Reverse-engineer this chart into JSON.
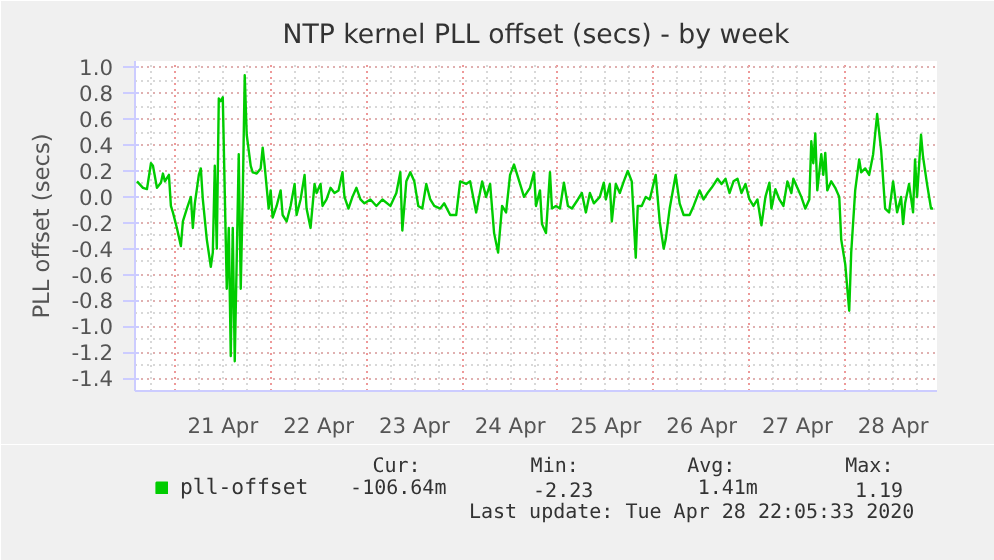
{
  "chart_data": {
    "type": "line",
    "title": "NTP kernel PLL offset (secs) - by week",
    "ylabel": "PLL offset (secs)",
    "xlim": [
      "2020-04-20T14:00",
      "2020-04-28T23:00"
    ],
    "ylim": [
      -1.5,
      1.05
    ],
    "yticks": [
      {
        "value": 1.0,
        "label": "1.0"
      },
      {
        "value": 0.8,
        "label": "0.8"
      },
      {
        "value": 0.6,
        "label": "0.6"
      },
      {
        "value": 0.4,
        "label": "0.4"
      },
      {
        "value": 0.2,
        "label": "0.2"
      },
      {
        "value": 0.0,
        "label": "0.0"
      },
      {
        "value": -0.2,
        "label": "-0.2"
      },
      {
        "value": -0.4,
        "label": "-0.4"
      },
      {
        "value": -0.6,
        "label": "-0.6"
      },
      {
        "value": -0.8,
        "label": "-0.8"
      },
      {
        "value": -1.0,
        "label": "-1.0"
      },
      {
        "value": -1.2,
        "label": "-1.2"
      },
      {
        "value": -1.4,
        "label": "-1.4"
      }
    ],
    "xticks": [
      {
        "value": "2020-04-21T00:00",
        "label": null
      },
      {
        "value": "2020-04-21T12:00",
        "label": "21 Apr"
      },
      {
        "value": "2020-04-22T00:00",
        "label": null
      },
      {
        "value": "2020-04-22T12:00",
        "label": "22 Apr"
      },
      {
        "value": "2020-04-23T00:00",
        "label": null
      },
      {
        "value": "2020-04-23T12:00",
        "label": "23 Apr"
      },
      {
        "value": "2020-04-24T00:00",
        "label": null
      },
      {
        "value": "2020-04-24T12:00",
        "label": "24 Apr"
      },
      {
        "value": "2020-04-25T00:00",
        "label": null
      },
      {
        "value": "2020-04-25T12:00",
        "label": "25 Apr"
      },
      {
        "value": "2020-04-26T00:00",
        "label": null
      },
      {
        "value": "2020-04-26T12:00",
        "label": "26 Apr"
      },
      {
        "value": "2020-04-27T00:00",
        "label": null
      },
      {
        "value": "2020-04-27T12:00",
        "label": "27 Apr"
      },
      {
        "value": "2020-04-28T00:00",
        "label": null
      },
      {
        "value": "2020-04-28T12:00",
        "label": "28 Apr"
      }
    ],
    "grid": true,
    "legend": "bottom",
    "marker": "none",
    "line_style": "solid",
    "annotations": [
      "Cur:",
      "Min:",
      "Avg:",
      "Max:",
      "-106.64m",
      "-2.23",
      "1.41m",
      "1.19",
      "Last update: Tue Apr 28 22:05:33 2020"
    ],
    "x": [
      "2020-04-20T14:30",
      "2020-04-20T16:00",
      "2020-04-20T17:00",
      "2020-04-20T18:00",
      "2020-04-20T18:30",
      "2020-04-20T19:30",
      "2020-04-20T20:30",
      "2020-04-20T21:00",
      "2020-04-20T21:30",
      "2020-04-20T22:30",
      "2020-04-20T23:00",
      "2020-04-20T23:30",
      "2020-04-21T00:30",
      "2020-04-21T01:30",
      "2020-04-21T02:00",
      "2020-04-21T03:00",
      "2020-04-21T04:00",
      "2020-04-21T04:30",
      "2020-04-21T05:00",
      "2020-04-21T06:00",
      "2020-04-21T06:30",
      "2020-04-21T07:00",
      "2020-04-21T08:00",
      "2020-04-21T09:00",
      "2020-04-21T09:30",
      "2020-04-21T10:00",
      "2020-04-21T10:30",
      "2020-04-21T11:00",
      "2020-04-21T11:30",
      "2020-04-21T12:00",
      "2020-04-21T13:00",
      "2020-04-21T13:30",
      "2020-04-21T14:00",
      "2020-04-21T14:30",
      "2020-04-21T15:00",
      "2020-04-21T16:00",
      "2020-04-21T16:30",
      "2020-04-21T17:00",
      "2020-04-21T17:30",
      "2020-04-21T18:00",
      "2020-04-21T19:00",
      "2020-04-21T19:30",
      "2020-04-21T20:30",
      "2020-04-21T21:30",
      "2020-04-21T22:00",
      "2020-04-21T22:30",
      "2020-04-21T23:30",
      "2020-04-22T00:00",
      "2020-04-22T00:30",
      "2020-04-22T01:30",
      "2020-04-22T02:30",
      "2020-04-22T03:00",
      "2020-04-22T04:00",
      "2020-04-22T05:00",
      "2020-04-22T06:00",
      "2020-04-22T06:30",
      "2020-04-22T07:30",
      "2020-04-22T08:30",
      "2020-04-22T09:00",
      "2020-04-22T10:00",
      "2020-04-22T11:00",
      "2020-04-22T11:30",
      "2020-04-22T12:30",
      "2020-04-22T13:00",
      "2020-04-22T14:00",
      "2020-04-22T15:00",
      "2020-04-22T16:00",
      "2020-04-22T17:00",
      "2020-04-22T18:00",
      "2020-04-22T18:30",
      "2020-04-22T19:30",
      "2020-04-22T20:30",
      "2020-04-22T21:30",
      "2020-04-22T22:30",
      "2020-04-22T23:30",
      "2020-04-23T01:00",
      "2020-04-23T02:30",
      "2020-04-23T04:00",
      "2020-04-23T06:00",
      "2020-04-23T07:30",
      "2020-04-23T08:30",
      "2020-04-23T09:00",
      "2020-04-23T10:00",
      "2020-04-23T11:00",
      "2020-04-23T12:00",
      "2020-04-23T13:00",
      "2020-04-23T14:00",
      "2020-04-23T15:00",
      "2020-04-23T16:00",
      "2020-04-23T17:00",
      "2020-04-23T18:30",
      "2020-04-23T19:30",
      "2020-04-23T21:00",
      "2020-04-23T22:30",
      "2020-04-23T23:30",
      "2020-04-24T01:00",
      "2020-04-24T02:00",
      "2020-04-24T03:30",
      "2020-04-24T05:00",
      "2020-04-24T06:00",
      "2020-04-24T07:00",
      "2020-04-24T08:00",
      "2020-04-24T09:00",
      "2020-04-24T10:00",
      "2020-04-24T11:00",
      "2020-04-24T12:00",
      "2020-04-24T13:00",
      "2020-04-24T14:30",
      "2020-04-24T15:30",
      "2020-04-24T17:00",
      "2020-04-24T18:00",
      "2020-04-24T18:30",
      "2020-04-24T19:30",
      "2020-04-24T20:00",
      "2020-04-24T21:00",
      "2020-04-24T22:00",
      "2020-04-24T22:30",
      "2020-04-24T23:30",
      "2020-04-25T00:30",
      "2020-04-25T01:30",
      "2020-04-25T02:30",
      "2020-04-25T03:30",
      "2020-04-25T05:00",
      "2020-04-25T06:00",
      "2020-04-25T07:00",
      "2020-04-25T08:00",
      "2020-04-25T09:00",
      "2020-04-25T10:30",
      "2020-04-25T11:30",
      "2020-04-25T12:00",
      "2020-04-25T13:00",
      "2020-04-25T13:30",
      "2020-04-25T14:30",
      "2020-04-25T15:30",
      "2020-04-25T16:30",
      "2020-04-25T17:30",
      "2020-04-25T18:30",
      "2020-04-25T19:30",
      "2020-04-25T20:00",
      "2020-04-25T21:00",
      "2020-04-25T22:00",
      "2020-04-25T23:00",
      "2020-04-26T00:30",
      "2020-04-26T01:30",
      "2020-04-26T02:30",
      "2020-04-26T03:00",
      "2020-04-26T04:00",
      "2020-04-26T05:30",
      "2020-04-26T06:30",
      "2020-04-26T07:30",
      "2020-04-26T09:00",
      "2020-04-26T10:00",
      "2020-04-26T11:30",
      "2020-04-26T12:30",
      "2020-04-26T13:30",
      "2020-04-26T14:30",
      "2020-04-26T16:00",
      "2020-04-26T17:00",
      "2020-04-26T18:00",
      "2020-04-26T19:00",
      "2020-04-26T20:00",
      "2020-04-26T21:00",
      "2020-04-26T22:00",
      "2020-04-26T23:00",
      "2020-04-27T00:00",
      "2020-04-27T01:00",
      "2020-04-27T02:00",
      "2020-04-27T03:00",
      "2020-04-27T04:00",
      "2020-04-27T05:00",
      "2020-04-27T05:30",
      "2020-04-27T06:30",
      "2020-04-27T07:30",
      "2020-04-27T08:30",
      "2020-04-27T09:30",
      "2020-04-27T10:30",
      "2020-04-27T11:00",
      "2020-04-27T12:00",
      "2020-04-27T13:00",
      "2020-04-27T14:00",
      "2020-04-27T15:00",
      "2020-04-27T15:30",
      "2020-04-27T16:00",
      "2020-04-27T16:30",
      "2020-04-27T17:00",
      "2020-04-27T18:00",
      "2020-04-27T18:30",
      "2020-04-27T19:00",
      "2020-04-27T19:30",
      "2020-04-27T20:30",
      "2020-04-27T21:30",
      "2020-04-27T22:30",
      "2020-04-27T23:00",
      "2020-04-28T00:00",
      "2020-04-28T01:00",
      "2020-04-28T01:30",
      "2020-04-28T02:30",
      "2020-04-28T03:30",
      "2020-04-28T04:00",
      "2020-04-28T05:00",
      "2020-04-28T06:00",
      "2020-04-28T07:00",
      "2020-04-28T08:00",
      "2020-04-28T08:30",
      "2020-04-28T09:00",
      "2020-04-28T10:00",
      "2020-04-28T11:00",
      "2020-04-28T12:00",
      "2020-04-28T13:00",
      "2020-04-28T14:00",
      "2020-04-28T14:30",
      "2020-04-28T15:00",
      "2020-04-28T16:00",
      "2020-04-28T17:00",
      "2020-04-28T17:30",
      "2020-04-28T18:00",
      "2020-04-28T19:00",
      "2020-04-28T19:30",
      "2020-04-28T20:30",
      "2020-04-28T21:30",
      "2020-04-28T22:00"
    ],
    "series": [
      {
        "name": "pll-offset",
        "color": "#00cc00",
        "values": [
          0.12,
          0.07,
          0.06,
          0.26,
          0.24,
          0.07,
          0.11,
          0.18,
          0.12,
          0.17,
          -0.07,
          -0.12,
          -0.24,
          -0.38,
          -0.19,
          -0.09,
          0,
          -0.24,
          -0.05,
          0.17,
          0.22,
          -0.02,
          -0.33,
          -0.54,
          -0.43,
          0.24,
          -0.4,
          0.76,
          0.74,
          0.77,
          -0.71,
          -0.24,
          -1.23,
          -0.24,
          -1.27,
          0.33,
          -0.71,
          0,
          0.94,
          0.48,
          0.24,
          0.19,
          0.18,
          0.22,
          0.38,
          0.24,
          -0.09,
          0.05,
          -0.16,
          -0.07,
          0.05,
          -0.14,
          -0.19,
          -0.07,
          0.1,
          -0.14,
          -0.02,
          0.17,
          -0.09,
          -0.24,
          0.1,
          0.03,
          0.1,
          -0.07,
          -0.02,
          0.07,
          0.03,
          0.05,
          0.19,
          0,
          -0.09,
          0,
          0.07,
          -0.02,
          -0.05,
          -0.02,
          -0.07,
          -0.02,
          -0.07,
          0.03,
          0.19,
          -0.26,
          0.12,
          0.19,
          0.12,
          -0.07,
          -0.09,
          0.1,
          -0.02,
          -0.07,
          -0.09,
          -0.05,
          -0.14,
          -0.14,
          0.12,
          0.1,
          0.12,
          -0.12,
          0.12,
          0,
          0.1,
          -0.28,
          -0.43,
          -0.07,
          -0.12,
          0.17,
          0.25,
          0.1,
          0,
          0.07,
          0.19,
          -0.07,
          0.05,
          -0.21,
          -0.28,
          0.19,
          -0.09,
          -0.07,
          -0.09,
          0.11,
          -0.07,
          -0.09,
          -0.02,
          0.03,
          -0.12,
          0.03,
          -0.05,
          0,
          0.11,
          -0.02,
          0.1,
          -0.19,
          0.1,
          0.03,
          0.12,
          0.2,
          0.12,
          -0.47,
          -0.07,
          -0.07,
          0,
          -0.02,
          0.17,
          -0.19,
          -0.4,
          -0.33,
          -0.09,
          0.17,
          -0.05,
          -0.14,
          -0.14,
          -0.07,
          0.05,
          -0.02,
          0.03,
          0.07,
          0.14,
          0.1,
          0.14,
          0.03,
          0.12,
          0.14,
          0.03,
          0.1,
          -0.02,
          -0.07,
          -0.02,
          -0.22,
          0,
          0.11,
          -0.09,
          0.06,
          -0.02,
          -0.07,
          0.12,
          0.03,
          0.14,
          0.07,
          0,
          -0.09,
          -0.02,
          0.43,
          0.26,
          0.49,
          0.05,
          0.33,
          0.17,
          0.34,
          0.05,
          0.12,
          0.07,
          0,
          -0.33,
          -0.52,
          -0.88,
          -0.43,
          0.05,
          0.29,
          0.19,
          0.22,
          0.17,
          0.33,
          0.64,
          0.5,
          0.36,
          -0.09,
          -0.12,
          0.12,
          -0.12,
          0,
          -0.21,
          -0.05,
          0.1,
          -0.12,
          0.29,
          0,
          0.48,
          0.31,
          0.1,
          -0.09,
          -0.09
        ]
      }
    ]
  }
}
